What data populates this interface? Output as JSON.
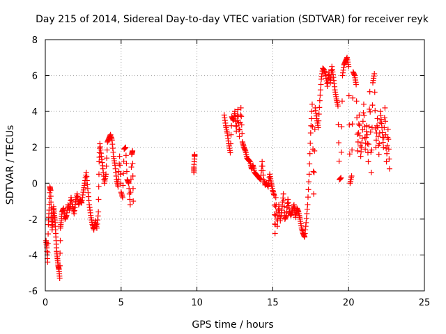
{
  "chart_data": {
    "type": "scatter",
    "title": "Day 215 of 2014, Sidereal Day-to-day VTEC variation (SDTVAR) for receiver reyk",
    "xlabel": "GPS time / hours",
    "ylabel": "SDTVAR / TECUs",
    "xlim": [
      0,
      25
    ],
    "ylim": [
      -6,
      8
    ],
    "xticks": [
      0,
      5,
      10,
      15,
      20,
      25
    ],
    "yticks": [
      -6,
      -4,
      -2,
      0,
      2,
      4,
      6,
      8
    ],
    "grid": true,
    "marker": "+",
    "legend": "none",
    "series": [
      {
        "name": "SDTVAR",
        "color": "#ff0000",
        "points": [
          [
            0.05,
            -3.2
          ],
          [
            0.1,
            -3.6
          ],
          [
            0.15,
            -4.4
          ],
          [
            0.2,
            -2.3
          ],
          [
            0.25,
            -1.5
          ],
          [
            0.3,
            -0.2
          ],
          [
            0.35,
            -0.4
          ],
          [
            0.4,
            -1.7
          ],
          [
            0.45,
            -2.6
          ],
          [
            0.5,
            -2.0
          ],
          [
            0.55,
            -1.3
          ],
          [
            0.6,
            -1.8
          ],
          [
            0.65,
            -2.2
          ],
          [
            0.7,
            -3.0
          ],
          [
            0.75,
            -3.8
          ],
          [
            0.8,
            -4.2
          ],
          [
            0.85,
            -4.6
          ],
          [
            0.9,
            -4.8
          ],
          [
            0.95,
            -5.3
          ],
          [
            1.0,
            -2.5
          ],
          [
            1.05,
            -2.1
          ],
          [
            1.1,
            -1.6
          ],
          [
            1.2,
            -1.4
          ],
          [
            1.3,
            -2.0
          ],
          [
            1.4,
            -1.8
          ],
          [
            1.5,
            -1.2
          ],
          [
            1.6,
            -1.5
          ],
          [
            1.7,
            -0.8
          ],
          [
            1.8,
            -1.3
          ],
          [
            1.9,
            -1.7
          ],
          [
            2.0,
            -1.0
          ],
          [
            2.1,
            -0.6
          ],
          [
            2.2,
            -1.2
          ],
          [
            2.3,
            -0.9
          ],
          [
            2.4,
            -1.1
          ],
          [
            2.5,
            -0.5
          ],
          [
            2.6,
            0.0
          ],
          [
            2.7,
            0.6
          ],
          [
            2.8,
            -0.3
          ],
          [
            2.9,
            -1.2
          ],
          [
            3.0,
            -1.8
          ],
          [
            3.1,
            -2.3
          ],
          [
            3.2,
            -2.6
          ],
          [
            3.3,
            -2.1
          ],
          [
            3.4,
            -2.5
          ],
          [
            3.5,
            -1.6
          ],
          [
            3.55,
            1.2
          ],
          [
            3.6,
            2.2
          ],
          [
            3.7,
            1.5
          ],
          [
            3.8,
            0.8
          ],
          [
            3.9,
            0.0
          ],
          [
            4.0,
            0.5
          ],
          [
            4.1,
            2.3
          ],
          [
            4.2,
            2.5
          ],
          [
            4.3,
            2.7
          ],
          [
            4.4,
            2.4
          ],
          [
            4.5,
            1.5
          ],
          [
            4.6,
            1.0
          ],
          [
            4.7,
            0.2
          ],
          [
            4.8,
            -0.2
          ],
          [
            4.9,
            1.5
          ],
          [
            5.0,
            -0.5
          ],
          [
            5.1,
            -0.8
          ],
          [
            5.2,
            1.9
          ],
          [
            5.3,
            2.0
          ],
          [
            5.4,
            0.2
          ],
          [
            5.5,
            0.0
          ],
          [
            5.6,
            -1.2
          ],
          [
            5.7,
            1.6
          ],
          [
            5.75,
            1.8
          ],
          [
            5.8,
            -1.0
          ],
          [
            9.8,
            0.6
          ],
          [
            9.8,
            0.9
          ],
          [
            9.85,
            1.5
          ],
          [
            9.85,
            1.6
          ],
          [
            11.8,
            3.8
          ],
          [
            11.9,
            3.2
          ],
          [
            12.0,
            2.8
          ],
          [
            12.1,
            2.2
          ],
          [
            12.2,
            1.7
          ],
          [
            12.3,
            3.7
          ],
          [
            12.4,
            3.5
          ],
          [
            12.5,
            4.0
          ],
          [
            12.6,
            2.9
          ],
          [
            12.7,
            4.1
          ],
          [
            12.8,
            2.6
          ],
          [
            12.9,
            4.2
          ],
          [
            13.0,
            2.3
          ],
          [
            13.1,
            2.0
          ],
          [
            13.2,
            1.8
          ],
          [
            13.3,
            1.4
          ],
          [
            13.4,
            1.3
          ],
          [
            13.5,
            1.2
          ],
          [
            13.6,
            0.8
          ],
          [
            13.7,
            1.0
          ],
          [
            13.8,
            0.6
          ],
          [
            13.9,
            0.5
          ],
          [
            14.0,
            0.4
          ],
          [
            14.1,
            0.3
          ],
          [
            14.2,
            0.2
          ],
          [
            14.3,
            1.2
          ],
          [
            14.4,
            0.2
          ],
          [
            14.5,
            -0.1
          ],
          [
            14.6,
            0.0
          ],
          [
            14.7,
            -0.2
          ],
          [
            14.8,
            0.5
          ],
          [
            14.9,
            0.0
          ],
          [
            15.0,
            -0.4
          ],
          [
            15.1,
            -0.7
          ],
          [
            15.15,
            -2.8
          ],
          [
            15.2,
            -0.8
          ],
          [
            15.3,
            -2.4
          ],
          [
            15.4,
            -1.2
          ],
          [
            15.5,
            -2.1
          ],
          [
            15.6,
            -1.5
          ],
          [
            15.7,
            -0.6
          ],
          [
            15.8,
            -2.0
          ],
          [
            15.9,
            -1.8
          ],
          [
            16.0,
            -0.9
          ],
          [
            16.1,
            -1.6
          ],
          [
            16.2,
            -1.8
          ],
          [
            16.3,
            -1.5
          ],
          [
            16.4,
            -1.2
          ],
          [
            16.5,
            -1.9
          ],
          [
            16.6,
            -1.4
          ],
          [
            16.7,
            -1.6
          ],
          [
            16.8,
            -2.0
          ],
          [
            16.9,
            -2.5
          ],
          [
            17.0,
            -2.8
          ],
          [
            17.1,
            -3.0
          ],
          [
            17.2,
            -2.2
          ],
          [
            17.3,
            -1.2
          ],
          [
            17.4,
            0.5
          ],
          [
            17.5,
            2.8
          ],
          [
            17.6,
            4.4
          ],
          [
            17.7,
            -0.6
          ],
          [
            17.8,
            4.2
          ],
          [
            17.9,
            3.6
          ],
          [
            18.0,
            3.1
          ],
          [
            18.1,
            4.6
          ],
          [
            18.2,
            5.8
          ],
          [
            18.3,
            6.4
          ],
          [
            18.4,
            6.3
          ],
          [
            18.5,
            6.0
          ],
          [
            18.6,
            5.4
          ],
          [
            18.7,
            6.2
          ],
          [
            18.8,
            5.6
          ],
          [
            18.9,
            6.5
          ],
          [
            19.0,
            5.9
          ],
          [
            19.1,
            5.2
          ],
          [
            19.2,
            4.7
          ],
          [
            19.3,
            4.3
          ],
          [
            19.4,
            0.2
          ],
          [
            19.5,
            0.3
          ],
          [
            19.6,
            6.0
          ],
          [
            19.7,
            6.6
          ],
          [
            19.8,
            6.8
          ],
          [
            19.9,
            7.0
          ],
          [
            20.0,
            6.5
          ],
          [
            20.1,
            0.0
          ],
          [
            20.2,
            0.4
          ],
          [
            20.3,
            6.2
          ],
          [
            20.4,
            6.0
          ],
          [
            20.5,
            5.5
          ],
          [
            20.6,
            1.8
          ],
          [
            20.7,
            3.8
          ],
          [
            20.8,
            1.5
          ],
          [
            20.9,
            2.5
          ],
          [
            21.0,
            4.4
          ],
          [
            21.1,
            1.9
          ],
          [
            21.2,
            3.2
          ],
          [
            21.3,
            1.2
          ],
          [
            21.4,
            5.1
          ],
          [
            21.5,
            0.6
          ],
          [
            21.6,
            5.6
          ],
          [
            21.7,
            6.1
          ],
          [
            21.8,
            2.0
          ],
          [
            21.9,
            3.6
          ],
          [
            22.0,
            1.6
          ],
          [
            22.1,
            4.0
          ],
          [
            22.2,
            3.1
          ],
          [
            22.3,
            2.0
          ],
          [
            22.4,
            4.2
          ],
          [
            22.5,
            1.2
          ],
          [
            22.6,
            3.0
          ],
          [
            22.7,
            0.8
          ]
        ]
      }
    ]
  }
}
